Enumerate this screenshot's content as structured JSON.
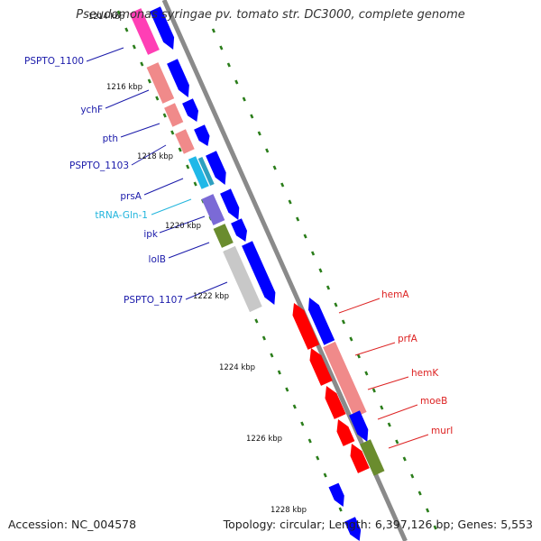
{
  "title": "Pseudomonas syringae pv. tomato str. DC3000, complete genome",
  "footer": {
    "accession": "Accession: NC_004578",
    "topology": "Topology: circular; Length: 6,397,126 bp; Genes: 5,553"
  },
  "colors": {
    "backbone": "#8a8a8a",
    "gc_skew_tick": "#2a7d1a",
    "left_label": "#1a1aaa",
    "trna_label": "#22b5dd",
    "right_label": "#dd2222",
    "cds_blue": "#0000ff",
    "cds_red": "#ff0000",
    "cds_pink": "#ff3fb5",
    "cds_salmon": "#f08a8a",
    "cds_cyan": "#20b8e8",
    "cds_purple": "#7b6ad6",
    "cds_olive": "#6a8c2e",
    "cds_gray": "#c8c8c8"
  },
  "scale_labels": [
    "1214 kbp",
    "1216 kbp",
    "1218 kbp",
    "1220 kbp",
    "1222 kbp",
    "1224 kbp",
    "1226 kbp",
    "1228 kbp"
  ],
  "left_genes": [
    {
      "name": "PSPTO_1100",
      "type": "cds"
    },
    {
      "name": "ychF",
      "type": "cds"
    },
    {
      "name": "pth",
      "type": "cds"
    },
    {
      "name": "PSPTO_1103",
      "type": "cds"
    },
    {
      "name": "prsA",
      "type": "cds"
    },
    {
      "name": "tRNA-Gln-1",
      "type": "trna"
    },
    {
      "name": "ipk",
      "type": "cds"
    },
    {
      "name": "lolB",
      "type": "cds"
    },
    {
      "name": "PSPTO_1107",
      "type": "cds"
    }
  ],
  "right_genes": [
    {
      "name": "hemA"
    },
    {
      "name": "prfA"
    },
    {
      "name": "hemK"
    },
    {
      "name": "moeB"
    },
    {
      "name": "murI"
    }
  ]
}
